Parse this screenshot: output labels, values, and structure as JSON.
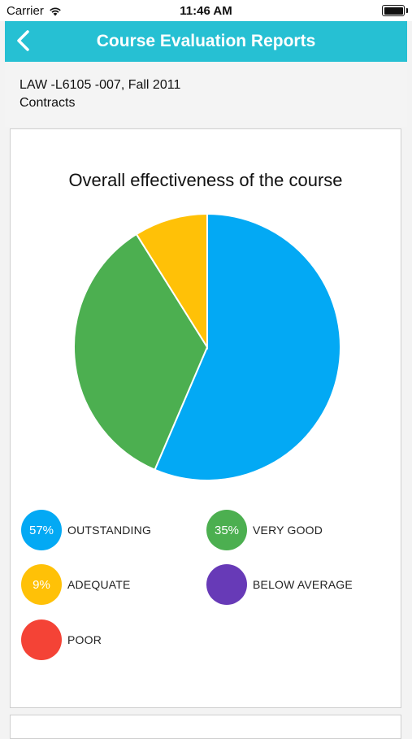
{
  "status_bar": {
    "carrier": "Carrier",
    "time": "11:46 AM"
  },
  "nav": {
    "title": "Course Evaluation Reports",
    "back_icon": "chevron-left-icon"
  },
  "course": {
    "code": "LAW -L6105 -007, Fall 2011",
    "name": "Contracts"
  },
  "colors": {
    "nav_bg": "#26c0d3",
    "outstanding": "#03a9f4",
    "very_good": "#4caf50",
    "adequate": "#ffc107",
    "below_average": "#673ab7",
    "poor": "#f44336"
  },
  "chart_data": {
    "type": "pie",
    "title": "Overall effectiveness of the course",
    "categories": [
      "OUTSTANDING",
      "VERY GOOD",
      "ADEQUATE",
      "BELOW AVERAGE",
      "POOR"
    ],
    "values": [
      57,
      35,
      9,
      0,
      0
    ],
    "value_labels": [
      "57%",
      "35%",
      "9%",
      "",
      ""
    ],
    "colors": [
      "#03a9f4",
      "#4caf50",
      "#ffc107",
      "#673ab7",
      "#f44336"
    ],
    "legend": "bottom"
  }
}
